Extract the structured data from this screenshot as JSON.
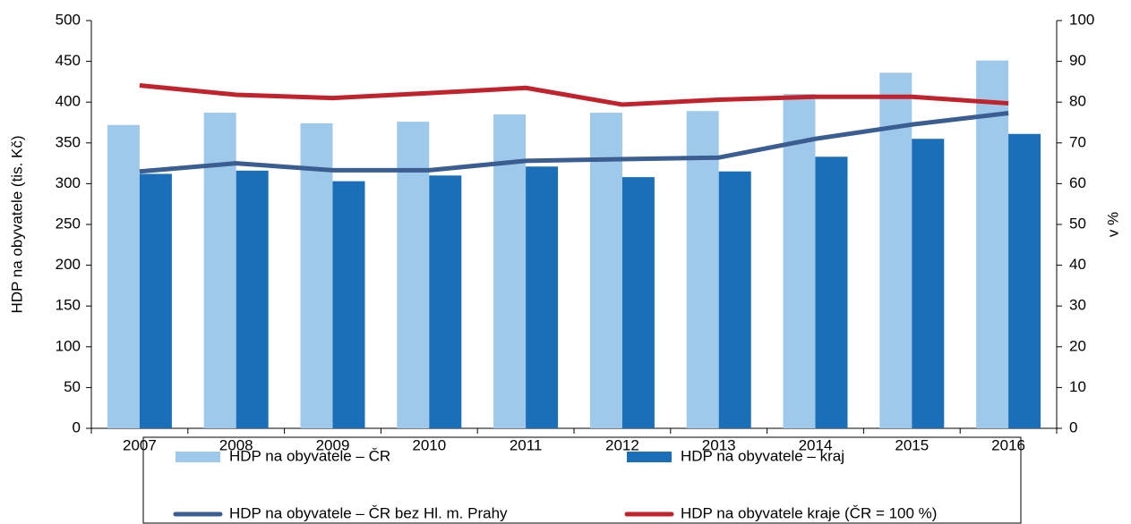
{
  "chart_data": {
    "type": "bar",
    "y_axis_label": "HDP na obyvatele (tis. Kč)",
    "y2_axis_label": "v %",
    "categories": [
      "2007",
      "2008",
      "2009",
      "2010",
      "2011",
      "2012",
      "2013",
      "2014",
      "2015",
      "2016"
    ],
    "ylim": [
      0,
      500
    ],
    "yticks": [
      0,
      50,
      100,
      150,
      200,
      250,
      300,
      350,
      400,
      450,
      500
    ],
    "y2lim": [
      0,
      100
    ],
    "y2ticks": [
      0,
      10,
      20,
      30,
      40,
      50,
      60,
      70,
      80,
      90,
      100
    ],
    "legend": "bottom",
    "series": [
      {
        "name": "HDP na obyvatele – ČR",
        "type": "bar",
        "color": "#9fc9ea",
        "values": [
          372,
          387,
          374,
          376,
          385,
          387,
          389,
          410,
          436,
          451
        ]
      },
      {
        "name": "HDP na obyvatele – kraj",
        "type": "bar",
        "color": "#1a6fb8",
        "values": [
          312,
          316,
          303,
          310,
          321,
          308,
          315,
          333,
          355,
          361
        ]
      },
      {
        "name": "HDP na obyvatele – ČR bez Hl. m. Prahy",
        "type": "line",
        "axis": "y2",
        "color": "#3a5d92",
        "values": [
          63,
          65,
          63.3,
          63.3,
          65.6,
          66,
          66.4,
          71,
          74.5,
          77.3
        ]
      },
      {
        "name": "HDP na obyvatele kraje (ČR = 100 %)",
        "type": "line",
        "axis": "y2",
        "color": "#c0232c",
        "values": [
          84.1,
          81.8,
          81,
          82.2,
          83.5,
          79.4,
          80.6,
          81.3,
          81.3,
          79.7
        ]
      }
    ]
  }
}
